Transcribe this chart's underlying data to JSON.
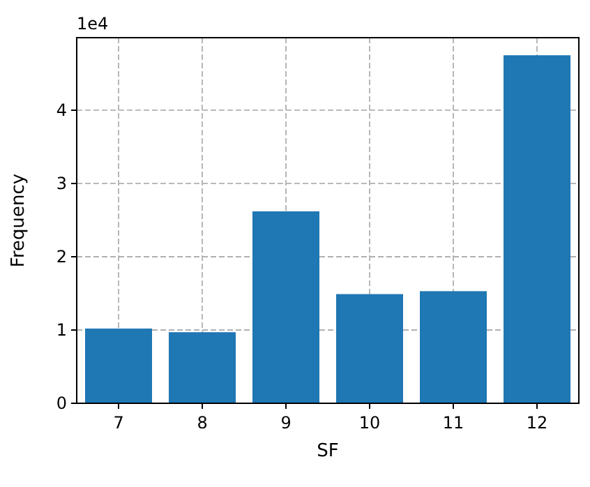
{
  "chart_data": {
    "type": "bar",
    "xlabel": "SF",
    "ylabel": "Frequency",
    "categories": [
      "7",
      "8",
      "9",
      "10",
      "11",
      "12"
    ],
    "values": [
      1.02,
      0.97,
      2.62,
      1.49,
      1.53,
      4.75
    ],
    "color": "#1f77b4",
    "ylim": [
      0,
      4.99
    ],
    "yticks": [
      0,
      1,
      2,
      3,
      4
    ],
    "annotations": [
      "1e4"
    ],
    "grid": true
  }
}
